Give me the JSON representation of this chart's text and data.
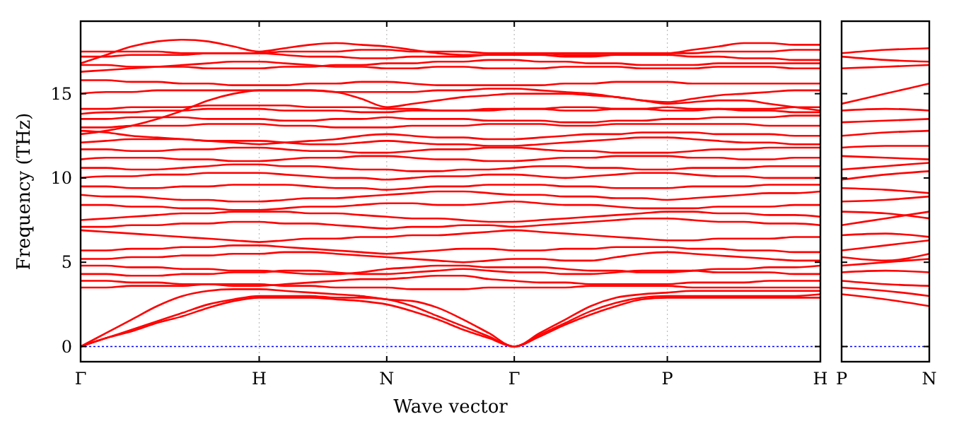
{
  "chart_data": [
    {
      "type": "line",
      "xlabel": "Wave vector",
      "ylabel": "Frequency (THz)",
      "ylim": [
        -0.9,
        19.3
      ],
      "categories": [
        "Γ",
        null,
        null,
        null,
        null,
        null,
        null,
        "H",
        null,
        null,
        null,
        null,
        "N",
        null,
        null,
        null,
        null,
        "Γ",
        null,
        null,
        null,
        null,
        null,
        "P",
        null,
        null,
        null,
        null,
        null,
        "H"
      ],
      "yticks": [
        0,
        5,
        10,
        15
      ],
      "grid": "x",
      "marker": "none",
      "line_style": "solid",
      "ref_lines": [
        {
          "axis": "y",
          "value": 0,
          "color": "#0000ff",
          "line_style": "dotted"
        }
      ],
      "series": [
        {
          "color": "#ff0000",
          "values": [
            0,
            0.5,
            0.9,
            1.4,
            1.8,
            2.3,
            2.7,
            2.9,
            2.9,
            2.9,
            2.8,
            2.7,
            2.5,
            2.1,
            1.6,
            1.0,
            0.5,
            0,
            0.6,
            1.3,
            1.9,
            2.4,
            2.8,
            2.9,
            2.9,
            2.9,
            2.9,
            2.9,
            2.9,
            2.9
          ]
        },
        {
          "color": "#ff0000",
          "values": [
            0,
            0.5,
            1.0,
            1.5,
            2.0,
            2.5,
            2.8,
            3.0,
            3.0,
            3.0,
            2.9,
            2.9,
            2.8,
            2.4,
            1.8,
            1.2,
            0.6,
            0,
            0.7,
            1.4,
            2.1,
            2.6,
            2.9,
            3.0,
            3.0,
            3.0,
            3.0,
            3.0,
            3.0,
            3.1
          ]
        },
        {
          "color": "#ff0000",
          "values": [
            0,
            0.8,
            1.6,
            2.4,
            3.0,
            3.3,
            3.4,
            3.4,
            3.3,
            3.2,
            3.1,
            3.0,
            2.8,
            2.7,
            2.3,
            1.6,
            0.8,
            0,
            0.8,
            1.6,
            2.4,
            2.9,
            3.1,
            3.2,
            3.3,
            3.3,
            3.3,
            3.3,
            3.3,
            3.3
          ]
        },
        {
          "color": "#ff0000",
          "values": [
            3.5,
            3.5,
            3.6,
            3.6,
            3.6,
            3.7,
            3.7,
            3.7,
            3.6,
            3.6,
            3.5,
            3.5,
            3.5,
            3.4,
            3.4,
            3.4,
            3.5,
            3.5,
            3.5,
            3.5,
            3.6,
            3.6,
            3.6,
            3.6,
            3.5,
            3.5,
            3.5,
            3.5,
            3.5,
            3.5
          ]
        },
        {
          "color": "#ff0000",
          "values": [
            3.9,
            3.9,
            3.8,
            3.8,
            3.7,
            3.7,
            3.6,
            3.6,
            3.7,
            3.8,
            3.9,
            4.0,
            4.0,
            4.1,
            4.2,
            4.2,
            4.0,
            3.9,
            3.8,
            3.8,
            3.7,
            3.7,
            3.7,
            3.7,
            3.8,
            3.8,
            3.8,
            3.9,
            3.9,
            3.9
          ]
        },
        {
          "color": "#ff0000",
          "values": [
            4.3,
            4.3,
            4.2,
            4.2,
            4.3,
            4.3,
            4.4,
            4.4,
            4.5,
            4.5,
            4.4,
            4.3,
            4.3,
            4.4,
            4.5,
            4.6,
            4.5,
            4.4,
            4.4,
            4.3,
            4.3,
            4.4,
            4.5,
            4.5,
            4.5,
            4.4,
            4.4,
            4.4,
            4.3,
            4.3
          ]
        },
        {
          "color": "#ff0000",
          "values": [
            4.8,
            4.8,
            4.7,
            4.7,
            4.6,
            4.6,
            4.5,
            4.5,
            4.4,
            4.3,
            4.3,
            4.4,
            4.6,
            4.7,
            4.8,
            4.8,
            4.7,
            4.7,
            4.7,
            4.6,
            4.5,
            4.5,
            4.4,
            4.4,
            4.5,
            4.6,
            4.6,
            4.7,
            4.7,
            4.8
          ]
        },
        {
          "color": "#ff0000",
          "values": [
            5.2,
            5.2,
            5.3,
            5.3,
            5.4,
            5.4,
            5.5,
            5.5,
            5.6,
            5.6,
            5.5,
            5.4,
            5.3,
            5.2,
            5.1,
            5.0,
            5.1,
            5.2,
            5.2,
            5.1,
            5.1,
            5.3,
            5.5,
            5.6,
            5.5,
            5.4,
            5.3,
            5.2,
            5.1,
            5.1
          ]
        },
        {
          "color": "#ff0000",
          "values": [
            5.7,
            5.7,
            5.8,
            5.8,
            5.9,
            5.9,
            6.0,
            6.0,
            5.9,
            5.8,
            5.7,
            5.6,
            5.5,
            5.6,
            5.7,
            5.8,
            5.8,
            5.7,
            5.7,
            5.8,
            5.8,
            5.9,
            5.9,
            5.9,
            5.8,
            5.8,
            5.7,
            5.7,
            5.6,
            5.6
          ]
        },
        {
          "color": "#ff0000",
          "values": [
            6.9,
            6.8,
            6.7,
            6.6,
            6.5,
            6.4,
            6.3,
            6.2,
            6.3,
            6.4,
            6.4,
            6.5,
            6.5,
            6.6,
            6.6,
            6.7,
            6.8,
            6.9,
            6.8,
            6.7,
            6.6,
            6.5,
            6.4,
            6.3,
            6.3,
            6.4,
            6.4,
            6.4,
            6.5,
            6.5
          ]
        },
        {
          "color": "#ff0000",
          "values": [
            7.1,
            7.1,
            7.2,
            7.2,
            7.3,
            7.3,
            7.4,
            7.4,
            7.3,
            7.3,
            7.2,
            7.1,
            7.0,
            7.1,
            7.1,
            7.2,
            7.2,
            7.1,
            7.2,
            7.3,
            7.4,
            7.5,
            7.6,
            7.6,
            7.5,
            7.4,
            7.4,
            7.3,
            7.3,
            7.2
          ]
        },
        {
          "color": "#ff0000",
          "values": [
            7.5,
            7.6,
            7.7,
            7.8,
            7.9,
            7.9,
            8.0,
            8.0,
            8.0,
            7.9,
            7.9,
            7.8,
            7.7,
            7.6,
            7.6,
            7.5,
            7.4,
            7.4,
            7.5,
            7.6,
            7.7,
            7.8,
            7.9,
            8.0,
            8.0,
            7.9,
            7.9,
            7.8,
            7.8,
            7.7
          ]
        },
        {
          "color": "#ff0000",
          "values": [
            8.4,
            8.4,
            8.3,
            8.3,
            8.2,
            8.2,
            8.1,
            8.1,
            8.2,
            8.3,
            8.3,
            8.4,
            8.5,
            8.5,
            8.4,
            8.4,
            8.5,
            8.6,
            8.5,
            8.4,
            8.4,
            8.3,
            8.2,
            8.2,
            8.2,
            8.3,
            8.3,
            8.3,
            8.4,
            8.4
          ]
        },
        {
          "color": "#ff0000",
          "values": [
            9.0,
            8.9,
            8.9,
            8.8,
            8.7,
            8.7,
            8.6,
            8.6,
            8.7,
            8.8,
            8.8,
            8.9,
            9.0,
            9.1,
            9.2,
            9.2,
            9.1,
            9.0,
            9.0,
            8.9,
            8.9,
            8.8,
            8.8,
            8.7,
            8.8,
            8.9,
            9.0,
            9.1,
            9.1,
            9.2
          ]
        },
        {
          "color": "#ff0000",
          "values": [
            9.5,
            9.5,
            9.4,
            9.4,
            9.5,
            9.5,
            9.6,
            9.6,
            9.6,
            9.5,
            9.4,
            9.4,
            9.3,
            9.4,
            9.5,
            9.5,
            9.6,
            9.6,
            9.6,
            9.5,
            9.5,
            9.4,
            9.4,
            9.4,
            9.5,
            9.5,
            9.5,
            9.6,
            9.6,
            9.6
          ]
        },
        {
          "color": "#ff0000",
          "values": [
            10.0,
            10.1,
            10.1,
            10.2,
            10.2,
            10.3,
            10.3,
            10.3,
            10.2,
            10.1,
            10.0,
            10.0,
            9.9,
            10.0,
            10.1,
            10.1,
            10.2,
            10.2,
            10.1,
            10.0,
            10.1,
            10.2,
            10.3,
            10.3,
            10.2,
            10.1,
            10.1,
            10.0,
            10.0,
            10.0
          ]
        },
        {
          "color": "#ff0000",
          "values": [
            10.6,
            10.6,
            10.5,
            10.5,
            10.6,
            10.7,
            10.8,
            10.8,
            10.7,
            10.7,
            10.6,
            10.5,
            10.5,
            10.4,
            10.4,
            10.5,
            10.5,
            10.6,
            10.7,
            10.7,
            10.6,
            10.6,
            10.5,
            10.5,
            10.6,
            10.6,
            10.6,
            10.7,
            10.7,
            10.7
          ]
        },
        {
          "color": "#ff0000",
          "values": [
            11.1,
            11.2,
            11.2,
            11.2,
            11.1,
            11.1,
            11.0,
            11.0,
            11.1,
            11.2,
            11.2,
            11.3,
            11.3,
            11.2,
            11.1,
            11.1,
            11.0,
            11.0,
            11.1,
            11.2,
            11.2,
            11.3,
            11.3,
            11.3,
            11.2,
            11.2,
            11.1,
            11.1,
            11.2,
            11.2
          ]
        },
        {
          "color": "#ff0000",
          "values": [
            11.7,
            11.7,
            11.6,
            11.6,
            11.7,
            11.7,
            11.8,
            11.8,
            11.7,
            11.6,
            11.6,
            11.5,
            11.5,
            11.6,
            11.7,
            11.7,
            11.8,
            11.8,
            11.7,
            11.6,
            11.6,
            11.5,
            11.5,
            11.5,
            11.6,
            11.7,
            11.7,
            11.8,
            11.8,
            11.8
          ]
        },
        {
          "color": "#ff0000",
          "values": [
            12.1,
            12.2,
            12.3,
            12.3,
            12.3,
            12.2,
            12.2,
            12.2,
            12.1,
            12.0,
            12.0,
            12.1,
            12.2,
            12.1,
            12.0,
            12.0,
            11.9,
            11.9,
            12.0,
            12.1,
            12.2,
            12.3,
            12.4,
            12.4,
            12.3,
            12.2,
            12.1,
            12.1,
            12.0,
            12.0
          ]
        },
        {
          "color": "#ff0000",
          "values": [
            12.8,
            12.7,
            12.5,
            12.4,
            12.3,
            12.2,
            12.1,
            12.0,
            12.1,
            12.2,
            12.3,
            12.5,
            12.6,
            12.5,
            12.4,
            12.4,
            12.3,
            12.3,
            12.4,
            12.5,
            12.6,
            12.6,
            12.7,
            12.7,
            12.7,
            12.6,
            12.6,
            12.6,
            12.5,
            12.5
          ]
        },
        {
          "color": "#ff0000",
          "values": [
            13.0,
            13.0,
            13.1,
            13.1,
            13.1,
            13.2,
            13.2,
            13.2,
            13.1,
            13.1,
            13.0,
            13.0,
            13.0,
            13.1,
            13.1,
            13.1,
            13.2,
            13.2,
            13.2,
            13.1,
            13.1,
            13.2,
            13.2,
            13.2,
            13.2,
            13.2,
            13.2,
            13.1,
            13.1,
            13.1
          ]
        },
        {
          "color": "#ff0000",
          "values": [
            13.5,
            13.5,
            13.6,
            13.6,
            13.6,
            13.5,
            13.5,
            13.5,
            13.4,
            13.4,
            13.5,
            13.5,
            13.6,
            13.5,
            13.5,
            13.5,
            13.4,
            13.4,
            13.4,
            13.3,
            13.3,
            13.4,
            13.4,
            13.5,
            13.5,
            13.6,
            13.6,
            13.6,
            13.7,
            13.7
          ]
        },
        {
          "color": "#ff0000",
          "values": [
            13.8,
            13.9,
            13.9,
            14.0,
            14.0,
            14.1,
            14.1,
            14.1,
            14.0,
            14.0,
            14.0,
            13.9,
            13.9,
            14.0,
            14.0,
            14.0,
            14.1,
            14.1,
            14.1,
            14.0,
            14.0,
            14.1,
            14.1,
            14.2,
            14.1,
            14.1,
            14.0,
            14.0,
            13.9,
            13.9
          ]
        },
        {
          "color": "#ff0000",
          "values": [
            14.1,
            14.1,
            14.2,
            14.2,
            14.2,
            14.3,
            14.3,
            14.3,
            14.3,
            14.2,
            14.2,
            14.2,
            14.1,
            14.1,
            14.0,
            14.0,
            14.0,
            14.1,
            14.1,
            14.2,
            14.2,
            14.1,
            14.1,
            14.0,
            14.0,
            14.1,
            14.1,
            14.1,
            14.2,
            14.2
          ]
        },
        {
          "color": "#ff0000",
          "values": [
            12.6,
            12.8,
            13.1,
            13.5,
            14.0,
            14.6,
            15.0,
            15.2,
            15.2,
            15.2,
            15.1,
            14.7,
            14.2,
            14.4,
            14.6,
            14.8,
            14.9,
            15.0,
            15.0,
            15.0,
            14.9,
            14.8,
            14.6,
            14.4,
            14.5,
            14.6,
            14.6,
            14.4,
            14.2,
            14.0
          ]
        },
        {
          "color": "#ff0000",
          "values": [
            15.0,
            15.1,
            15.1,
            15.2,
            15.2,
            15.2,
            15.2,
            15.2,
            15.2,
            15.2,
            15.1,
            15.1,
            15.1,
            15.1,
            15.2,
            15.2,
            15.3,
            15.3,
            15.2,
            15.1,
            15.0,
            14.8,
            14.6,
            14.5,
            14.7,
            14.9,
            15.0,
            15.1,
            15.2,
            15.2
          ]
        },
        {
          "color": "#ff0000",
          "values": [
            15.8,
            15.8,
            15.7,
            15.7,
            15.6,
            15.6,
            15.5,
            15.5,
            15.5,
            15.6,
            15.6,
            15.7,
            15.7,
            15.6,
            15.5,
            15.5,
            15.5,
            15.5,
            15.5,
            15.6,
            15.6,
            15.7,
            15.7,
            15.7,
            15.6,
            15.6,
            15.6,
            15.6,
            15.6,
            15.6
          ]
        },
        {
          "color": "#ff0000",
          "values": [
            16.3,
            16.4,
            16.5,
            16.6,
            16.7,
            16.8,
            16.9,
            16.9,
            16.8,
            16.7,
            16.6,
            16.6,
            16.5,
            16.5,
            16.6,
            16.6,
            16.5,
            16.5,
            16.5,
            16.6,
            16.6,
            16.6,
            16.5,
            16.5,
            16.5,
            16.6,
            16.6,
            16.6,
            16.5,
            16.5
          ]
        },
        {
          "color": "#ff0000",
          "values": [
            16.7,
            16.7,
            16.6,
            16.6,
            16.6,
            16.5,
            16.5,
            16.5,
            16.6,
            16.6,
            16.7,
            16.7,
            16.8,
            16.8,
            16.9,
            16.9,
            17.0,
            17.0,
            16.9,
            16.9,
            16.8,
            16.8,
            16.7,
            16.7,
            16.7,
            16.8,
            16.8,
            16.8,
            16.8,
            16.8
          ]
        },
        {
          "color": "#ff0000",
          "values": [
            17.2,
            17.2,
            17.3,
            17.3,
            17.3,
            17.4,
            17.4,
            17.4,
            17.3,
            17.2,
            17.2,
            17.1,
            17.1,
            17.2,
            17.2,
            17.2,
            17.3,
            17.3,
            17.3,
            17.2,
            17.2,
            17.3,
            17.3,
            17.3,
            17.2,
            17.2,
            17.1,
            17.1,
            17.0,
            17.0
          ]
        },
        {
          "color": "#ff0000",
          "values": [
            17.5,
            17.5,
            17.5,
            17.5,
            17.4,
            17.4,
            17.4,
            17.4,
            17.5,
            17.5,
            17.5,
            17.6,
            17.6,
            17.5,
            17.5,
            17.5,
            17.4,
            17.4,
            17.4,
            17.3,
            17.3,
            17.3,
            17.4,
            17.4,
            17.4,
            17.5,
            17.5,
            17.5,
            17.6,
            17.6
          ]
        },
        {
          "color": "#ff0000",
          "values": [
            16.8,
            17.3,
            17.8,
            18.1,
            18.2,
            18.1,
            17.8,
            17.5,
            17.7,
            17.9,
            18.0,
            17.9,
            17.8,
            17.6,
            17.4,
            17.3,
            17.3,
            17.4,
            17.4,
            17.4,
            17.4,
            17.4,
            17.4,
            17.4,
            17.6,
            17.8,
            18.0,
            18.0,
            17.9,
            17.9
          ]
        }
      ]
    },
    {
      "type": "line",
      "ylim": [
        -0.9,
        19.3
      ],
      "categories": [
        "P",
        null,
        "N"
      ],
      "yticks": [
        {
          "value": 0,
          "label": null
        },
        {
          "value": 5,
          "label": null
        },
        {
          "value": 10,
          "label": null
        },
        {
          "value": 15,
          "label": null
        }
      ],
      "tick_labels": "x",
      "marker": "none",
      "line_style": "solid",
      "ref_lines": [
        {
          "axis": "y",
          "value": 0,
          "color": "#0000ff",
          "line_style": "dotted"
        }
      ],
      "series": [
        {
          "color": "#ff0000",
          "values": [
            3.1,
            2.8,
            2.4
          ]
        },
        {
          "color": "#ff0000",
          "values": [
            3.5,
            3.3,
            3.0
          ]
        },
        {
          "color": "#ff0000",
          "values": [
            3.9,
            3.7,
            3.6
          ]
        },
        {
          "color": "#ff0000",
          "values": [
            4.4,
            4.5,
            4.4
          ]
        },
        {
          "color": "#ff0000",
          "values": [
            4.8,
            5.0,
            5.2
          ]
        },
        {
          "color": "#ff0000",
          "values": [
            5.3,
            5.1,
            5.5
          ]
        },
        {
          "color": "#ff0000",
          "values": [
            5.7,
            6.0,
            6.3
          ]
        },
        {
          "color": "#ff0000",
          "values": [
            6.6,
            6.7,
            6.5
          ]
        },
        {
          "color": "#ff0000",
          "values": [
            7.2,
            7.6,
            8.0
          ]
        },
        {
          "color": "#ff0000",
          "values": [
            8.0,
            7.9,
            7.6
          ]
        },
        {
          "color": "#ff0000",
          "values": [
            8.6,
            8.7,
            8.9
          ]
        },
        {
          "color": "#ff0000",
          "values": [
            9.4,
            9.3,
            9.1
          ]
        },
        {
          "color": "#ff0000",
          "values": [
            9.9,
            10.2,
            10.4
          ]
        },
        {
          "color": "#ff0000",
          "values": [
            10.5,
            10.7,
            10.9
          ]
        },
        {
          "color": "#ff0000",
          "values": [
            11.3,
            11.2,
            11.1
          ]
        },
        {
          "color": "#ff0000",
          "values": [
            11.8,
            11.9,
            11.9
          ]
        },
        {
          "color": "#ff0000",
          "values": [
            12.5,
            12.7,
            12.8
          ]
        },
        {
          "color": "#ff0000",
          "values": [
            13.3,
            13.4,
            13.5
          ]
        },
        {
          "color": "#ff0000",
          "values": [
            14.0,
            14.1,
            14.0
          ]
        },
        {
          "color": "#ff0000",
          "values": [
            14.4,
            15.0,
            15.6
          ]
        },
        {
          "color": "#ff0000",
          "values": [
            16.5,
            16.6,
            16.7
          ]
        },
        {
          "color": "#ff0000",
          "values": [
            17.2,
            17.0,
            16.9
          ]
        },
        {
          "color": "#ff0000",
          "values": [
            17.4,
            17.6,
            17.7
          ]
        }
      ]
    }
  ]
}
